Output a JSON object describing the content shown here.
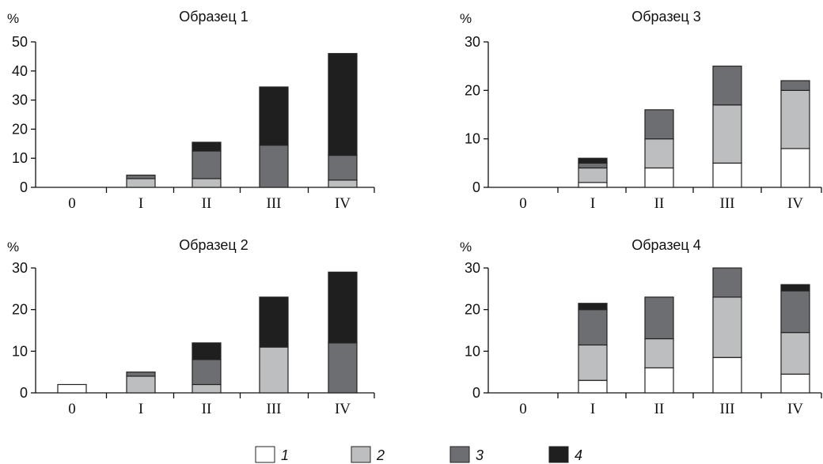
{
  "chart_data": [
    {
      "type": "bar",
      "stacked": true,
      "title": "Образец 1",
      "ylabel": "%",
      "ylim": [
        0,
        50
      ],
      "yticks": [
        "0",
        "10",
        "20",
        "30",
        "40",
        "50"
      ],
      "categories": [
        "0",
        "I",
        "II",
        "III",
        "IV"
      ],
      "series": [
        {
          "name": "1",
          "values": [
            0,
            0,
            0,
            0,
            0
          ]
        },
        {
          "name": "2",
          "values": [
            0,
            3,
            3,
            0,
            2.5
          ]
        },
        {
          "name": "3",
          "values": [
            0,
            1.2,
            9.5,
            14.5,
            8.5
          ]
        },
        {
          "name": "4",
          "values": [
            0,
            0,
            3,
            20,
            35
          ]
        }
      ]
    },
    {
      "type": "bar",
      "stacked": true,
      "title": "Образец 3",
      "ylabel": "%",
      "ylim": [
        0,
        30
      ],
      "yticks": [
        "0",
        "10",
        "20",
        "30"
      ],
      "categories": [
        "0",
        "I",
        "II",
        "III",
        "IV"
      ],
      "series": [
        {
          "name": "1",
          "values": [
            0,
            1,
            4,
            5,
            8
          ]
        },
        {
          "name": "2",
          "values": [
            0,
            3,
            6,
            12,
            12
          ]
        },
        {
          "name": "3",
          "values": [
            0,
            1,
            6,
            8,
            2
          ]
        },
        {
          "name": "4",
          "values": [
            0,
            1,
            0,
            0,
            0
          ]
        }
      ]
    },
    {
      "type": "bar",
      "stacked": true,
      "title": "Образец 2",
      "ylabel": "%",
      "ylim": [
        0,
        30
      ],
      "yticks": [
        "0",
        "10",
        "20",
        "30"
      ],
      "categories": [
        "0",
        "I",
        "II",
        "III",
        "IV"
      ],
      "series": [
        {
          "name": "1",
          "values": [
            2,
            0,
            0,
            0,
            0
          ]
        },
        {
          "name": "2",
          "values": [
            0,
            4,
            2,
            11,
            0
          ]
        },
        {
          "name": "3",
          "values": [
            0,
            1,
            6,
            0,
            12
          ]
        },
        {
          "name": "4",
          "values": [
            0,
            0,
            4,
            12,
            17
          ]
        }
      ]
    },
    {
      "type": "bar",
      "stacked": true,
      "title": "Образец 4",
      "ylabel": "%",
      "ylim": [
        0,
        30
      ],
      "yticks": [
        "0",
        "10",
        "20",
        "30"
      ],
      "categories": [
        "0",
        "I",
        "II",
        "III",
        "IV"
      ],
      "series": [
        {
          "name": "1",
          "values": [
            0,
            3,
            6,
            8.5,
            4.5
          ]
        },
        {
          "name": "2",
          "values": [
            0,
            8.5,
            7,
            14.5,
            10
          ]
        },
        {
          "name": "3",
          "values": [
            0,
            8.5,
            10,
            7,
            10
          ]
        },
        {
          "name": "4",
          "values": [
            0,
            1.5,
            0,
            0,
            1.5
          ]
        }
      ]
    }
  ],
  "legend": {
    "placement": "bottom",
    "items": [
      {
        "label": "1",
        "color": "#ffffff"
      },
      {
        "label": "2",
        "color": "#bcbec0"
      },
      {
        "label": "3",
        "color": "#6d6e71"
      },
      {
        "label": "4",
        "color": "#1f1f1f"
      }
    ]
  },
  "colors": {
    "1": "#ffffff",
    "2": "#bcbec0",
    "3": "#6d6e71",
    "4": "#1f1f1f",
    "axis": "#111111"
  }
}
